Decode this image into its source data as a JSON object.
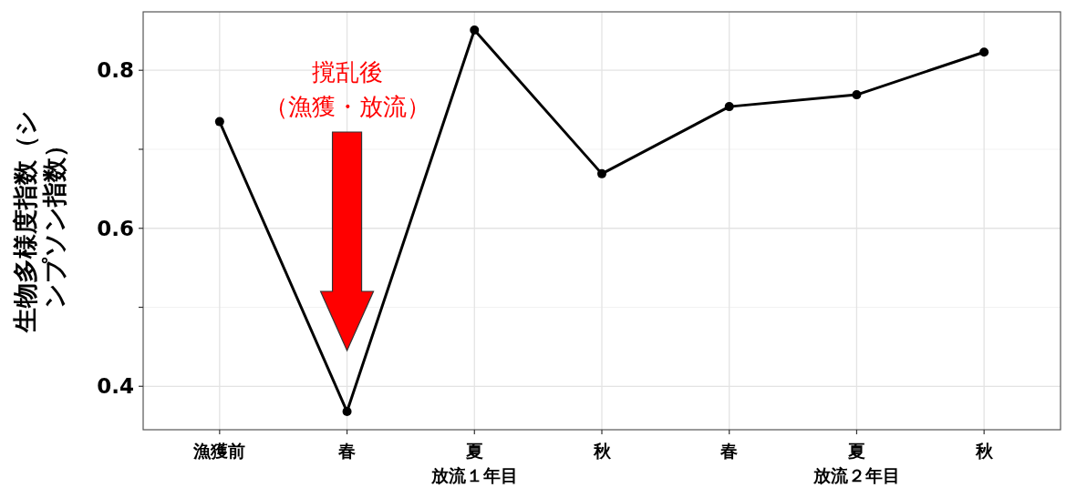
{
  "chart_data": {
    "type": "line",
    "ylabel": "生物多様度指数（シンプソン指数）",
    "categories": [
      "漁獲前",
      "春",
      "夏",
      "秋",
      "春",
      "夏",
      "秋"
    ],
    "series": [
      {
        "color": "#000000",
        "values": [
          0.735,
          0.368,
          0.851,
          0.669,
          0.754,
          0.769,
          0.823
        ]
      }
    ],
    "ylim": [
      0.345,
      0.874
    ],
    "yticks": [
      0.4,
      {
        "value": 0.5,
        "label": null
      },
      0.6,
      {
        "value": 0.7,
        "label": null
      },
      0.8
    ],
    "grid": true,
    "legend": false,
    "marker": "circle",
    "line_style": "solid",
    "annotations": [
      "撹乱後",
      "（漁獲・放流）",
      "放流１年目",
      "放流２年目"
    ]
  }
}
